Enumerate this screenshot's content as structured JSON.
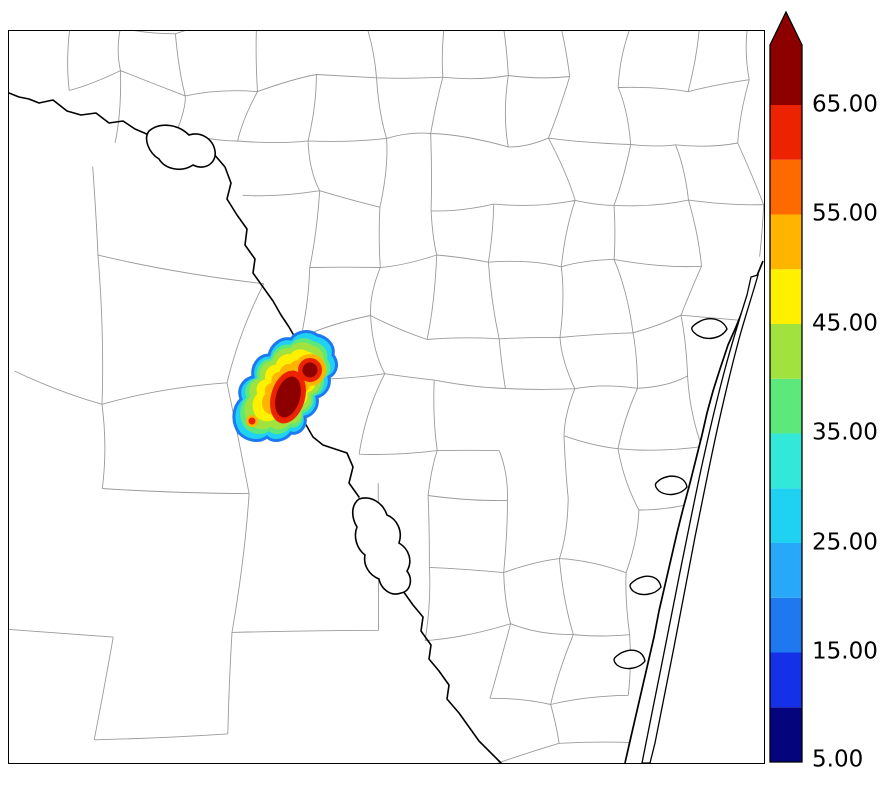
{
  "figure": {
    "background": "#ffffff",
    "frame_color": "#000000"
  },
  "map": {
    "county_line_color": "#9a9a9a",
    "boundary_line_color": "#000000",
    "water_fill": "#ffffff",
    "features": [
      "county-boundaries",
      "international-border-river",
      "reservoirs",
      "gulf-coastline",
      "barrier-island",
      "bays",
      "radar-echo"
    ]
  },
  "chart_data": {
    "type": "heatmap",
    "title": "",
    "legend_position": "right-colorbar",
    "colorbar": {
      "orientation": "vertical",
      "min": 5,
      "max": 65,
      "extend": "max",
      "tick_values": [
        65,
        55,
        45,
        35,
        25,
        15,
        5
      ],
      "tick_labels": [
        "65.00",
        "55.00",
        "45.00",
        "35.00",
        "25.00",
        "15.00",
        "5.00"
      ],
      "overflow_color": "#8C0000",
      "segments": [
        {
          "from": 5,
          "to": 10,
          "color": "#04047E"
        },
        {
          "from": 10,
          "to": 15,
          "color": "#1430E8"
        },
        {
          "from": 15,
          "to": 20,
          "color": "#1E78F0"
        },
        {
          "from": 20,
          "to": 25,
          "color": "#28A8F8"
        },
        {
          "from": 25,
          "to": 30,
          "color": "#20D2F2"
        },
        {
          "from": 30,
          "to": 35,
          "color": "#32E8D8"
        },
        {
          "from": 35,
          "to": 40,
          "color": "#5CE87A"
        },
        {
          "from": 40,
          "to": 45,
          "color": "#A2E23E"
        },
        {
          "from": 45,
          "to": 50,
          "color": "#FFF000"
        },
        {
          "from": 50,
          "to": 55,
          "color": "#FFB400"
        },
        {
          "from": 55,
          "to": 60,
          "color": "#FF6A00"
        },
        {
          "from": 60,
          "to": 65,
          "color": "#EC2200"
        }
      ]
    },
    "echo": {
      "location": "west-central, on the border river",
      "shape": "elongated SW-NE convective cluster",
      "levels_present": [
        20,
        25,
        30,
        35,
        40,
        45,
        50,
        55,
        60,
        65
      ],
      "cores_above_max": 2,
      "max_level": ">65"
    }
  }
}
